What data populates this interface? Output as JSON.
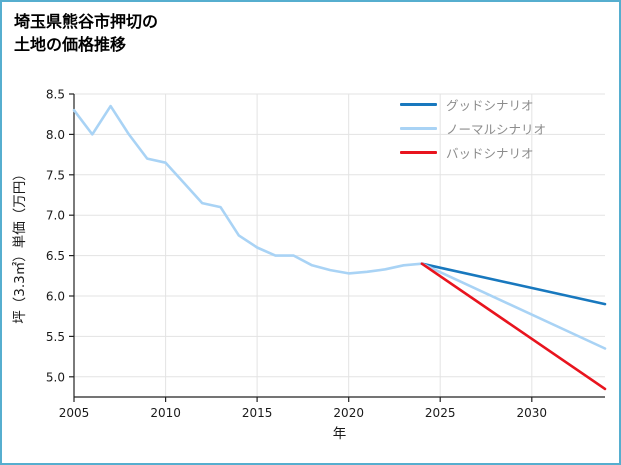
{
  "title": {
    "line1": "埼玉県熊谷市押切の",
    "line2": "土地の価格推移"
  },
  "colors": {
    "frame": "#56aecf",
    "grid": "#e3e3e3",
    "axis": "#222222",
    "tick_text": "#1a1a1a",
    "legend_text": "#8c8c8c",
    "history": "#a9d3f5",
    "good": "#1878be",
    "normal": "#a9d3f5",
    "bad": "#e8141e"
  },
  "chart_data": {
    "type": "line",
    "title": "埼玉県熊谷市押切の土地の価格推移",
    "xlabel": "年",
    "ylabel": "坪（3.3㎡）単価（万円）",
    "xlim": [
      2005,
      2034
    ],
    "ylim": [
      4.75,
      8.5
    ],
    "xticks": [
      2005,
      2010,
      2015,
      2020,
      2025,
      2030
    ],
    "yticks": [
      5.0,
      5.5,
      6.0,
      6.5,
      7.0,
      7.5,
      8.0,
      8.5
    ],
    "grid": true,
    "legend_position": "top-right",
    "series": [
      {
        "name": "history",
        "color": "#a9d3f5",
        "x": [
          2005,
          2006,
          2007,
          2008,
          2009,
          2010,
          2011,
          2012,
          2013,
          2014,
          2015,
          2016,
          2017,
          2018,
          2019,
          2020,
          2021,
          2022,
          2023,
          2024
        ],
        "values": [
          8.3,
          8.0,
          8.35,
          8.0,
          7.7,
          7.65,
          7.4,
          7.15,
          7.1,
          6.75,
          6.6,
          6.5,
          6.5,
          6.38,
          6.32,
          6.28,
          6.3,
          6.33,
          6.38,
          6.4
        ]
      },
      {
        "name": "グッドシナリオ",
        "color": "#1878be",
        "x": [
          2024,
          2034
        ],
        "values": [
          6.4,
          5.9
        ]
      },
      {
        "name": "ノーマルシナリオ",
        "color": "#a9d3f5",
        "x": [
          2024,
          2034
        ],
        "values": [
          6.4,
          5.35
        ]
      },
      {
        "name": "バッドシナリオ",
        "color": "#e8141e",
        "x": [
          2024,
          2034
        ],
        "values": [
          6.4,
          4.85
        ]
      }
    ],
    "legend": [
      "グッドシナリオ",
      "ノーマルシナリオ",
      "バッドシナリオ"
    ]
  }
}
